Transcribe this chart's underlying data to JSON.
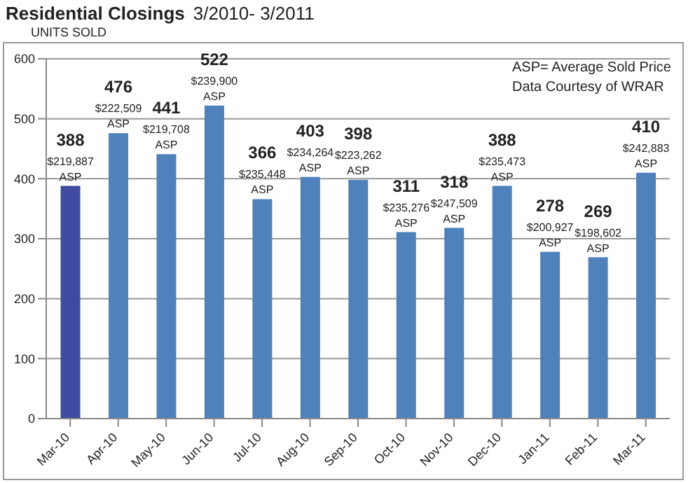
{
  "chart_data": {
    "type": "bar",
    "title": "Residential Closings",
    "subtitle": "3/2010- 3/2011",
    "ylabel": "UNITS SOLD",
    "annotations": [
      "ASP= Average Sold Price",
      "Data Courtesy of WRAR"
    ],
    "categories": [
      "Mar-10",
      "Apr-10",
      "May-10",
      "Jun-10",
      "Jul-10",
      "Aug-10",
      "Sep-10",
      "Oct-10",
      "Nov-10",
      "Dec-10",
      "Jan-11",
      "Feb-11",
      "Mar-11"
    ],
    "values": [
      388,
      476,
      441,
      522,
      366,
      403,
      398,
      311,
      318,
      388,
      278,
      269,
      410
    ],
    "colors": [
      "#3f4ba0",
      "#4f81bd",
      "#4f81bd",
      "#4f81bd",
      "#4f81bd",
      "#4f81bd",
      "#4f81bd",
      "#4f81bd",
      "#4f81bd",
      "#4f81bd",
      "#4f81bd",
      "#4f81bd",
      "#4f81bd"
    ],
    "value_labels": [
      "388\n$219,887\nASP",
      "476\n$222,509\nASP",
      "441\n$219,708\nASP",
      "522\n$239,900\nASP",
      "366\n$235,448\nASP",
      "403\n$234,264\nASP",
      "398\n$223,262\nASP",
      "311\n$235,276\nASP",
      "318\n$247,509\nASP",
      "388\n$235,473\nASP",
      "278\n$200,927\nASP",
      "269\n$198,602\nASP",
      "410\n$242,883\nASP"
    ],
    "ylim": [
      0,
      600
    ],
    "yticks": [
      0,
      100,
      200,
      300,
      400,
      500,
      600
    ],
    "grid": "y"
  }
}
